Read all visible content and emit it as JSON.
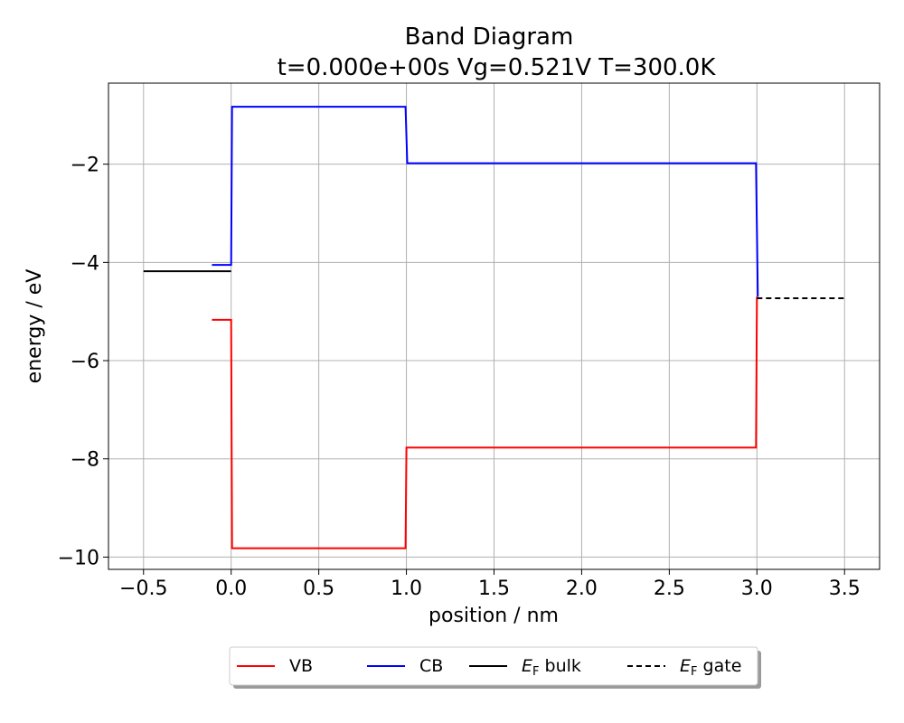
{
  "chart_data": {
    "type": "line",
    "title_line1": "Band Diagram",
    "title_line2": "t=0.000e+00s Vg=0.521V T=300.0K",
    "xlabel": "position / nm",
    "ylabel": "energy / eV",
    "xlim": [
      -0.7,
      3.7
    ],
    "ylim": [
      -10.25,
      -0.35
    ],
    "xticks": [
      -0.5,
      0.0,
      0.5,
      1.0,
      1.5,
      2.0,
      2.5,
      3.0,
      3.5
    ],
    "xtick_labels": [
      "−0.5",
      "0.0",
      "0.5",
      "1.0",
      "1.5",
      "2.0",
      "2.5",
      "3.0",
      "3.5"
    ],
    "yticks": [
      -10,
      -8,
      -6,
      -4,
      -2
    ],
    "ytick_labels": [
      "−10",
      "−8",
      "−6",
      "−4",
      "−2"
    ],
    "grid": true,
    "legend_placement": "bottom-center",
    "series": [
      {
        "name": "VB",
        "color": "#ff0000",
        "dash": "solid",
        "points": [
          [
            -0.11,
            -5.17
          ],
          [
            0.0,
            -5.17
          ],
          [
            0.005,
            -9.82
          ],
          [
            0.995,
            -9.82
          ],
          [
            1.0,
            -7.77
          ],
          [
            2.995,
            -7.77
          ],
          [
            3.0,
            -4.7
          ]
        ]
      },
      {
        "name": "CB",
        "color": "#0000ff",
        "dash": "solid",
        "points": [
          [
            -0.11,
            -4.05
          ],
          [
            0.0,
            -4.05
          ],
          [
            0.005,
            -0.83
          ],
          [
            0.995,
            -0.83
          ],
          [
            1.005,
            -1.98
          ],
          [
            2.995,
            -1.98
          ],
          [
            3.005,
            -4.7
          ]
        ]
      },
      {
        "name": "E_F bulk",
        "legend_main": "E",
        "legend_sub": "F",
        "legend_rest": " bulk",
        "color": "#000000",
        "dash": "solid",
        "points": [
          [
            -0.5,
            -4.18
          ],
          [
            0.0,
            -4.18
          ]
        ]
      },
      {
        "name": "E_F gate",
        "legend_main": "E",
        "legend_sub": "F",
        "legend_rest": " gate",
        "color": "#000000",
        "dash": "dashed",
        "points": [
          [
            3.0,
            -4.73
          ],
          [
            3.5,
            -4.73
          ]
        ]
      }
    ]
  }
}
